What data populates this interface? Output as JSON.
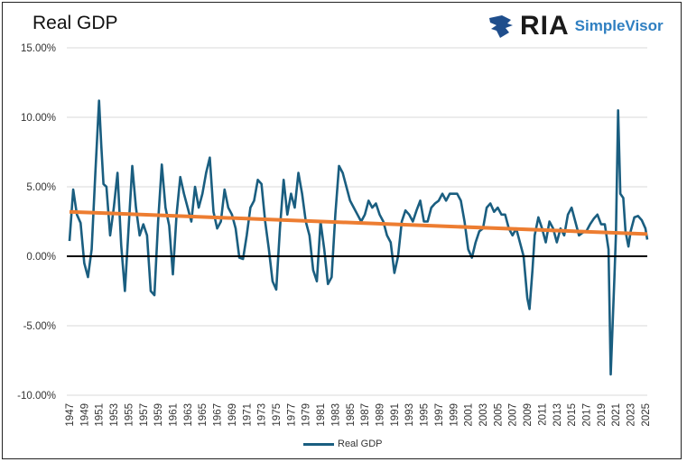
{
  "title": "Real GDP",
  "logo": {
    "brand": "RIA",
    "product": "SimpleVisor"
  },
  "colors": {
    "series": "#1a5e80",
    "trend": "#ed7d31",
    "zero_line": "#000000",
    "grid": "#d9d9d9",
    "logo_blue": "#2f7fc1"
  },
  "chart_data": {
    "type": "line",
    "title": "Real GDP",
    "ylim": [
      -10,
      15
    ],
    "y_ticks": [
      "-10.00%",
      "-5.00%",
      "0.00%",
      "5.00%",
      "10.00%",
      "15.00%"
    ],
    "y_tick_values": [
      -10,
      -5,
      0,
      5,
      10,
      15
    ],
    "x_ticks": [
      "1947",
      "1949",
      "1951",
      "1953",
      "1955",
      "1957",
      "1959",
      "1961",
      "1963",
      "1965",
      "1967",
      "1969",
      "1971",
      "1973",
      "1975",
      "1977",
      "1979",
      "1981",
      "1983",
      "1985",
      "1987",
      "1989",
      "1991",
      "1993",
      "1995",
      "1997",
      "1999",
      "2001",
      "2003",
      "2005",
      "2007",
      "2009",
      "2011",
      "2013",
      "2015",
      "2017",
      "2019",
      "2021",
      "2023",
      "2025"
    ],
    "xlim": [
      1947,
      2025.25
    ],
    "grid": true,
    "legend": "bottom",
    "series": [
      {
        "name": "Real GDP",
        "x": [
          1947,
          1947.5,
          1948,
          1948.5,
          1949,
          1949.5,
          1950,
          1950.5,
          1951,
          1951.3,
          1951.6,
          1952,
          1952.5,
          1953,
          1953.5,
          1954,
          1954.5,
          1955,
          1955.5,
          1956,
          1956.5,
          1957,
          1957.5,
          1958,
          1958.5,
          1959,
          1959.5,
          1960,
          1960.5,
          1961,
          1961.5,
          1962,
          1962.5,
          1963,
          1963.5,
          1964,
          1964.5,
          1965,
          1965.5,
          1966,
          1966.5,
          1967,
          1967.5,
          1968,
          1968.5,
          1969,
          1969.5,
          1970,
          1970.5,
          1971,
          1971.5,
          1972,
          1972.5,
          1973,
          1973.5,
          1974,
          1974.5,
          1975,
          1975.5,
          1976,
          1976.5,
          1977,
          1977.5,
          1978,
          1978.5,
          1979,
          1979.5,
          1980,
          1980.5,
          1981,
          1981.5,
          1982,
          1982.5,
          1983,
          1983.5,
          1984,
          1984.5,
          1985,
          1985.5,
          1986,
          1986.5,
          1987,
          1987.5,
          1988,
          1988.5,
          1989,
          1989.5,
          1990,
          1990.5,
          1991,
          1991.5,
          1992,
          1992.5,
          1993,
          1993.5,
          1994,
          1994.5,
          1995,
          1995.5,
          1996,
          1996.5,
          1997,
          1997.5,
          1998,
          1998.5,
          1999,
          1999.5,
          2000,
          2000.5,
          2001,
          2001.5,
          2002,
          2002.5,
          2003,
          2003.5,
          2004,
          2004.5,
          2005,
          2005.5,
          2006,
          2006.5,
          2007,
          2007.5,
          2008,
          2008.5,
          2009,
          2009.3,
          2009.7,
          2010,
          2010.5,
          2011,
          2011.5,
          2012,
          2012.5,
          2013,
          2013.5,
          2014,
          2014.5,
          2015,
          2015.5,
          2016,
          2016.5,
          2017,
          2017.5,
          2018,
          2018.5,
          2019,
          2019.5,
          2020,
          2020.3,
          2020.8,
          2021,
          2021.3,
          2021.6,
          2022,
          2022.3,
          2022.7,
          2023,
          2023.5,
          2024,
          2024.5,
          2025,
          2025.25
        ],
        "values": [
          1.1,
          4.8,
          3.0,
          2.4,
          -0.5,
          -1.5,
          0.5,
          6.0,
          11.2,
          8.0,
          5.2,
          5.0,
          1.5,
          3.5,
          6.0,
          0.8,
          -2.5,
          2.0,
          6.5,
          3.5,
          1.5,
          2.3,
          1.5,
          -2.5,
          -2.8,
          2.5,
          6.6,
          3.5,
          2.2,
          -1.3,
          3.0,
          5.7,
          4.5,
          3.5,
          2.5,
          5.0,
          3.5,
          4.5,
          6.0,
          7.1,
          3.2,
          2.0,
          2.5,
          4.8,
          3.5,
          3.0,
          2.0,
          -0.1,
          -0.2,
          1.5,
          3.5,
          4.0,
          5.5,
          5.2,
          2.5,
          0.5,
          -1.8,
          -2.4,
          2.0,
          5.5,
          3.0,
          4.5,
          3.5,
          6.0,
          4.5,
          2.5,
          1.5,
          -1.0,
          -1.8,
          2.5,
          0.5,
          -2.0,
          -1.5,
          3.0,
          6.5,
          6.0,
          5.0,
          4.0,
          3.5,
          3.0,
          2.5,
          3.0,
          4.0,
          3.5,
          3.8,
          3.0,
          2.5,
          1.5,
          1.0,
          -1.2,
          0.0,
          2.5,
          3.3,
          3.0,
          2.5,
          3.3,
          4.0,
          2.5,
          2.5,
          3.5,
          3.8,
          4.0,
          4.5,
          4.0,
          4.5,
          4.5,
          4.5,
          4.0,
          2.5,
          0.5,
          -0.1,
          1.0,
          1.8,
          2.0,
          3.5,
          3.8,
          3.2,
          3.5,
          3.0,
          3.0,
          2.0,
          1.5,
          2.0,
          1.0,
          0.0,
          -3.0,
          -3.8,
          -1.0,
          1.5,
          2.8,
          2.0,
          1.0,
          2.5,
          2.0,
          1.0,
          2.0,
          1.5,
          3.0,
          3.5,
          2.5,
          1.5,
          1.7,
          1.8,
          2.3,
          2.7,
          3.0,
          2.3,
          2.3,
          0.5,
          -8.5,
          -1.5,
          1.5,
          10.5,
          4.5,
          4.2,
          1.8,
          0.7,
          1.8,
          2.8,
          2.9,
          2.6,
          2.0,
          1.2
        ]
      },
      {
        "x": [
          1947,
          2025.25
        ],
        "values": [
          3.2,
          1.6
        ]
      }
    ]
  }
}
